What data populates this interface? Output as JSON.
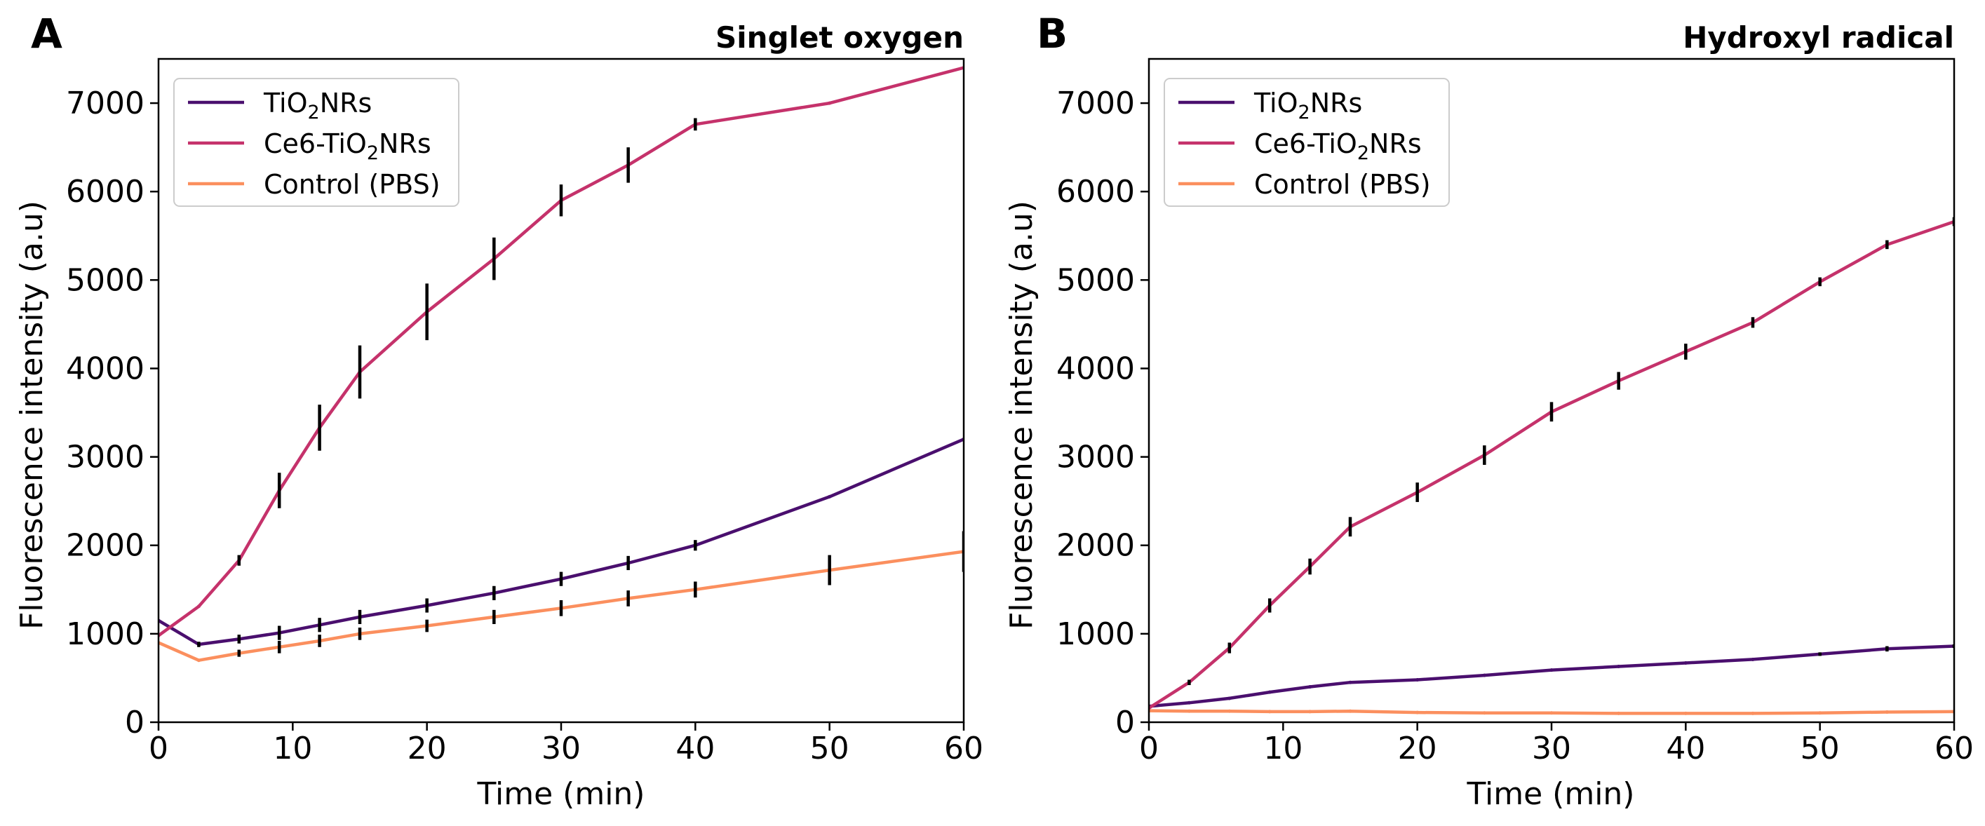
{
  "colors": {
    "tio2": "#4a0f6e",
    "ce6": "#c5326b",
    "control": "#fb8f5e",
    "axis": "#000000",
    "errorbar": "#000000"
  },
  "chart_data": [
    {
      "panel": "A",
      "type": "line",
      "title": "Singlet oxygen",
      "xlabel": "Time (min)",
      "ylabel": "Fluorescence intensity (a.u)",
      "xlim": [
        0,
        60
      ],
      "ylim": [
        0,
        7500
      ],
      "xticks": [
        0,
        10,
        20,
        30,
        40,
        50,
        60
      ],
      "yticks": [
        0,
        1000,
        2000,
        3000,
        4000,
        5000,
        6000,
        7000
      ],
      "legend_position": "top-left",
      "series": [
        {
          "name": "TiO2NRs",
          "label_main": "TiO",
          "label_sub": "2",
          "label_tail": "NRs",
          "color_key": "tio2",
          "x": [
            0,
            3,
            6,
            9,
            12,
            15,
            20,
            25,
            30,
            35,
            40,
            50,
            60
          ],
          "y": [
            1150,
            880,
            940,
            1010,
            1100,
            1190,
            1320,
            1460,
            1620,
            1800,
            2000,
            2550,
            3200
          ],
          "err": [
            0,
            30,
            50,
            80,
            80,
            80,
            80,
            80,
            80,
            80,
            60,
            0,
            0
          ]
        },
        {
          "name": "Ce6-TiO2NRs",
          "label_main": "Ce6-TiO",
          "label_sub": "2",
          "label_tail": "NRs",
          "color_key": "ce6",
          "x": [
            0,
            3,
            6,
            9,
            12,
            15,
            20,
            25,
            30,
            35,
            40,
            50,
            60
          ],
          "y": [
            980,
            1310,
            1830,
            2620,
            3330,
            3960,
            4640,
            5240,
            5900,
            6300,
            6760,
            7000,
            7400
          ],
          "err": [
            0,
            0,
            60,
            200,
            260,
            300,
            320,
            240,
            180,
            200,
            70,
            0,
            0
          ]
        },
        {
          "name": "Control (PBS)",
          "label_main": "Control (PBS)",
          "label_sub": "",
          "label_tail": "",
          "color_key": "control",
          "x": [
            0,
            3,
            6,
            9,
            12,
            15,
            20,
            25,
            30,
            35,
            40,
            50,
            60
          ],
          "y": [
            900,
            700,
            780,
            850,
            920,
            1000,
            1090,
            1190,
            1290,
            1400,
            1500,
            1720,
            1930
          ],
          "err": [
            0,
            0,
            40,
            70,
            70,
            70,
            70,
            80,
            90,
            90,
            90,
            170,
            230
          ]
        }
      ]
    },
    {
      "panel": "B",
      "type": "line",
      "title": "Hydroxyl radical",
      "xlabel": "Time (min)",
      "ylabel": "Fluorescence intensity (a.u)",
      "xlim": [
        0,
        60
      ],
      "ylim": [
        0,
        7500
      ],
      "xticks": [
        0,
        10,
        20,
        30,
        40,
        50,
        60
      ],
      "yticks": [
        0,
        1000,
        2000,
        3000,
        4000,
        5000,
        6000,
        7000
      ],
      "legend_position": "top-left",
      "series": [
        {
          "name": "TiO2NRs",
          "label_main": "TiO",
          "label_sub": "2",
          "label_tail": "NRs",
          "color_key": "tio2",
          "x": [
            0,
            3,
            6,
            9,
            12,
            15,
            20,
            25,
            30,
            35,
            40,
            45,
            50,
            55,
            60
          ],
          "y": [
            180,
            220,
            270,
            340,
            400,
            450,
            480,
            530,
            590,
            630,
            670,
            710,
            770,
            830,
            860
          ],
          "err": [
            0,
            0,
            0,
            0,
            0,
            0,
            0,
            0,
            0,
            0,
            0,
            0,
            20,
            30,
            20
          ]
        },
        {
          "name": "Ce6-TiO2NRs",
          "label_main": "Ce6-TiO",
          "label_sub": "2",
          "label_tail": "NRs",
          "color_key": "ce6",
          "x": [
            0,
            3,
            6,
            9,
            12,
            15,
            20,
            25,
            30,
            35,
            40,
            45,
            50,
            55,
            60
          ],
          "y": [
            160,
            450,
            840,
            1320,
            1760,
            2210,
            2600,
            3020,
            3510,
            3860,
            4190,
            4520,
            4980,
            5400,
            5660
          ],
          "err": [
            0,
            30,
            60,
            80,
            90,
            110,
            110,
            110,
            110,
            100,
            90,
            60,
            50,
            50,
            50
          ]
        },
        {
          "name": "Control (PBS)",
          "label_main": "Control (PBS)",
          "label_sub": "",
          "label_tail": "",
          "color_key": "control",
          "x": [
            0,
            3,
            6,
            9,
            12,
            15,
            20,
            25,
            30,
            35,
            40,
            45,
            50,
            55,
            60
          ],
          "y": [
            130,
            125,
            125,
            120,
            120,
            125,
            110,
            105,
            105,
            100,
            100,
            100,
            105,
            115,
            120
          ],
          "err": [
            0,
            0,
            0,
            0,
            0,
            0,
            0,
            0,
            0,
            0,
            0,
            0,
            0,
            0,
            0
          ]
        }
      ]
    }
  ]
}
